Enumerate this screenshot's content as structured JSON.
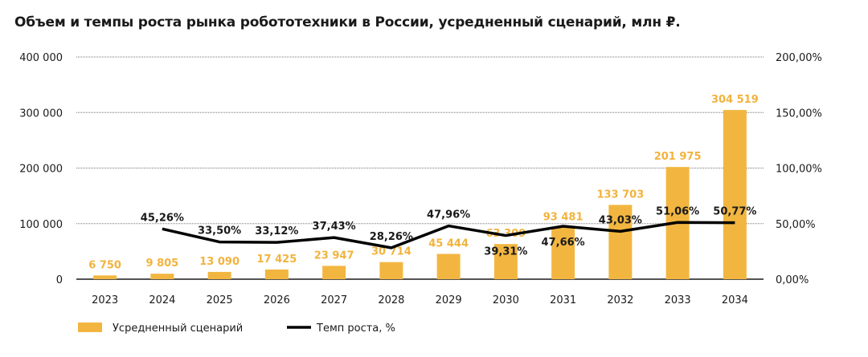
{
  "chart_data": {
    "type": "bar+line",
    "title": "Объем и темпы роста рынка робототехники в России, усредненный сценарий, млн ₽.",
    "categories": [
      "2023",
      "2024",
      "2025",
      "2026",
      "2027",
      "2028",
      "2029",
      "2030",
      "2031",
      "2032",
      "2033",
      "2034"
    ],
    "series": [
      {
        "name": "Усредненный сценарий",
        "type": "bar",
        "axis": "left",
        "color": "#F2B640",
        "values": [
          6750,
          9805,
          13090,
          17425,
          23947,
          30714,
          45444,
          63309,
          93481,
          133703,
          201975,
          304519
        ],
        "labels": [
          "6 750",
          "9 805",
          "13 090",
          "17 425",
          "23 947",
          "30 714",
          "45 444",
          "63 309",
          "93 481",
          "133 703",
          "201 975",
          "304 519"
        ]
      },
      {
        "name": "Темп роста, %",
        "type": "line",
        "axis": "right",
        "color": "#000000",
        "values": [
          null,
          45.26,
          33.5,
          33.12,
          37.43,
          28.26,
          47.96,
          39.31,
          47.66,
          43.03,
          51.06,
          50.77
        ],
        "labels": [
          "",
          "45,26%",
          "33,50%",
          "33,12%",
          "37,43%",
          "28,26%",
          "47,96%",
          "39,31%",
          "47,66%",
          "43,03%",
          "51,06%",
          "50,77%"
        ]
      }
    ],
    "left_axis": {
      "ylim": [
        0,
        400000
      ],
      "ticks": [
        "0",
        "100 000",
        "200 000",
        "300 000",
        "400 000"
      ]
    },
    "right_axis": {
      "ylim": [
        0,
        200
      ],
      "ticks": [
        "0,00%",
        "50,00%",
        "100,00%",
        "150,00%",
        "200,00%"
      ]
    },
    "grid": true,
    "legend": "bottom-left"
  }
}
